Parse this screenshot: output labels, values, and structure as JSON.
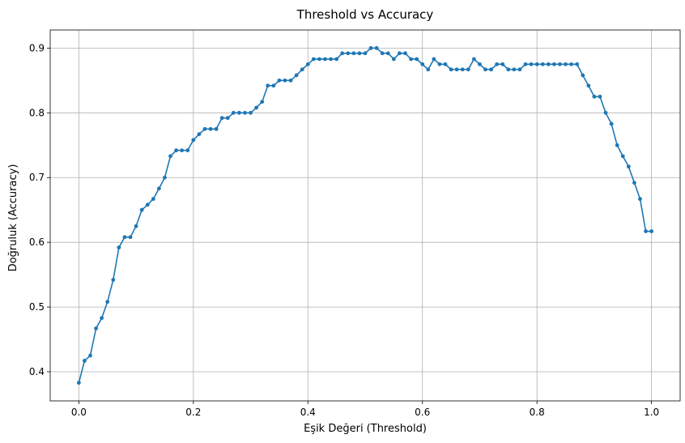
{
  "chart_data": {
    "type": "line",
    "title": "Threshold vs Accuracy",
    "xlabel": "Eşik Değeri (Threshold)",
    "ylabel": "Doğruluk (Accuracy)",
    "xlim": [
      -0.05,
      1.05
    ],
    "ylim": [
      0.355,
      0.928
    ],
    "grid": true,
    "line_color": "#1f77b4",
    "x_ticks": [
      {
        "value": 0.0,
        "label": "0.0"
      },
      {
        "value": 0.2,
        "label": "0.2"
      },
      {
        "value": 0.4,
        "label": "0.4"
      },
      {
        "value": 0.6,
        "label": "0.6"
      },
      {
        "value": 0.8,
        "label": "0.8"
      },
      {
        "value": 1.0,
        "label": "1.0"
      }
    ],
    "y_ticks": [
      {
        "value": 0.4,
        "label": "0.4"
      },
      {
        "value": 0.5,
        "label": "0.5"
      },
      {
        "value": 0.6,
        "label": "0.6"
      },
      {
        "value": 0.7,
        "label": "0.7"
      },
      {
        "value": 0.8,
        "label": "0.8"
      },
      {
        "value": 0.9,
        "label": "0.9"
      }
    ],
    "x": [
      0.0,
      0.01,
      0.02,
      0.03,
      0.04,
      0.05,
      0.06,
      0.07,
      0.08,
      0.09,
      0.1,
      0.11,
      0.12,
      0.13,
      0.14,
      0.15,
      0.16,
      0.17,
      0.18,
      0.19,
      0.2,
      0.21,
      0.22,
      0.23,
      0.24,
      0.25,
      0.26,
      0.27,
      0.28,
      0.29,
      0.3,
      0.31,
      0.32,
      0.33,
      0.34,
      0.35,
      0.36,
      0.37,
      0.38,
      0.39,
      0.4,
      0.41,
      0.42,
      0.43,
      0.44,
      0.45,
      0.46,
      0.47,
      0.48,
      0.49,
      0.5,
      0.51,
      0.52,
      0.53,
      0.54,
      0.55,
      0.56,
      0.57,
      0.58,
      0.59,
      0.6,
      0.61,
      0.62,
      0.63,
      0.64,
      0.65,
      0.66,
      0.67,
      0.68,
      0.69,
      0.7,
      0.71,
      0.72,
      0.73,
      0.74,
      0.75,
      0.76,
      0.77,
      0.78,
      0.79,
      0.8,
      0.81,
      0.82,
      0.83,
      0.84,
      0.85,
      0.86,
      0.87,
      0.88,
      0.89,
      0.9,
      0.91,
      0.92,
      0.93,
      0.94,
      0.95,
      0.96,
      0.97,
      0.98,
      0.99,
      1.0
    ],
    "series": [
      {
        "values": [
          0.383,
          0.417,
          0.425,
          0.467,
          0.483,
          0.508,
          0.542,
          0.592,
          0.608,
          0.608,
          0.625,
          0.65,
          0.658,
          0.667,
          0.683,
          0.7,
          0.733,
          0.742,
          0.742,
          0.742,
          0.758,
          0.767,
          0.775,
          0.775,
          0.775,
          0.792,
          0.792,
          0.8,
          0.8,
          0.8,
          0.8,
          0.808,
          0.817,
          0.842,
          0.842,
          0.85,
          0.85,
          0.85,
          0.858,
          0.867,
          0.875,
          0.883,
          0.883,
          0.883,
          0.883,
          0.883,
          0.892,
          0.892,
          0.892,
          0.892,
          0.892,
          0.9,
          0.9,
          0.892,
          0.892,
          0.883,
          0.892,
          0.892,
          0.883,
          0.883,
          0.875,
          0.867,
          0.883,
          0.875,
          0.875,
          0.867,
          0.867,
          0.867,
          0.867,
          0.883,
          0.875,
          0.867,
          0.867,
          0.875,
          0.875,
          0.867,
          0.867,
          0.867,
          0.875,
          0.875,
          0.875,
          0.875,
          0.875,
          0.875,
          0.875,
          0.875,
          0.875,
          0.875,
          0.858,
          0.842,
          0.825,
          0.825,
          0.8,
          0.783,
          0.75,
          0.733,
          0.717,
          0.692,
          0.667,
          0.617,
          0.617
        ]
      }
    ]
  }
}
